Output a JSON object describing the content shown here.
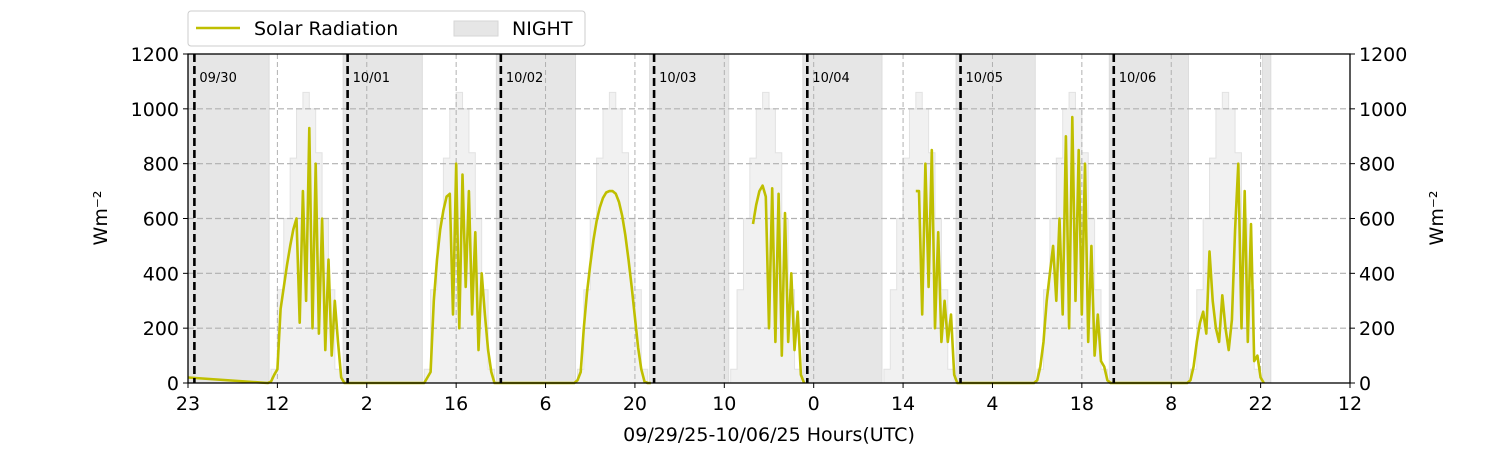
{
  "chart_data": {
    "type": "line",
    "xlabel": "09/29/25-10/06/25  Hours(UTC)",
    "ylabel_left": "Wm⁻²",
    "ylabel_right": "Wm⁻²",
    "x_units": "hours since 09/29/25 00:00 UTC",
    "xlim": [
      23,
      205
    ],
    "ylim": [
      0,
      1200
    ],
    "yticks": [
      0,
      200,
      400,
      600,
      800,
      1000,
      1200
    ],
    "xticks": [
      23,
      37,
      51,
      65,
      79,
      93,
      107,
      121,
      135,
      149,
      163,
      177,
      191,
      205
    ],
    "xtick_labels": [
      "23",
      "12",
      "2",
      "16",
      "6",
      "20",
      "10",
      "0",
      "14",
      "4",
      "18",
      "8",
      "22",
      "12"
    ],
    "grid": true,
    "legend": {
      "placement": "top-left, above plot",
      "entries": [
        "Solar Radiation",
        "NIGHT"
      ]
    },
    "colors": {
      "solar": "#bfbf00",
      "night": "#e6e6e6",
      "clear_sky": "#f1f1f1",
      "grid": "#b0b0b0"
    },
    "day_markers": [
      {
        "hour": 24,
        "label": "09/30"
      },
      {
        "hour": 48,
        "label": "10/01"
      },
      {
        "hour": 72,
        "label": "10/02"
      },
      {
        "hour": 96,
        "label": "10/03"
      },
      {
        "hour": 120,
        "label": "10/04"
      },
      {
        "hour": 144,
        "label": "10/05"
      },
      {
        "hour": 168,
        "label": "10/06"
      }
    ],
    "night_bands": [
      [
        23,
        35.7
      ],
      [
        47.3,
        59.7
      ],
      [
        71.3,
        83.7
      ],
      [
        95.3,
        107.7
      ],
      [
        119.3,
        131.7
      ],
      [
        143.3,
        155.7
      ],
      [
        167.3,
        179.7
      ],
      [
        191.3,
        192.6
      ]
    ],
    "clear_sky_hourly_utc": {
      "hours": [
        12,
        13,
        14,
        15,
        16,
        17,
        18,
        19,
        20,
        21,
        22
      ],
      "values": [
        50,
        340,
        600,
        820,
        1000,
        1060,
        1000,
        840,
        600,
        340,
        50
      ]
    },
    "series": [
      {
        "name": "Solar Radiation",
        "start_value": 20,
        "utc_half_hours": [
          11.5,
          12,
          12.5,
          13,
          13.5,
          14,
          14.5,
          15,
          15.5,
          16,
          16.5,
          17,
          17.5,
          18,
          18.5,
          19,
          19.5,
          20,
          20.5,
          21,
          21.5,
          22,
          22.5,
          23,
          23.5
        ],
        "days": [
          {
            "date": "09/30",
            "values": [
              0,
              5,
              30,
              50,
              270,
              350,
              430,
              500,
              560,
              600,
              220,
              700,
              300,
              930,
              200,
              800,
              180,
              600,
              120,
              450,
              100,
              300,
              150,
              20,
              0
            ]
          },
          {
            "date": "10/01",
            "values": [
              0,
              0,
              20,
              40,
              300,
              450,
              560,
              630,
              680,
              690,
              250,
              800,
              200,
              760,
              350,
              700,
              250,
              550,
              120,
              400,
              250,
              120,
              40,
              0,
              0
            ]
          },
          {
            "date": "10/02",
            "values": [
              0,
              10,
              40,
              200,
              330,
              430,
              520,
              590,
              640,
              675,
              695,
              700,
              700,
              690,
              660,
              610,
              540,
              450,
              350,
              240,
              130,
              50,
              5,
              0,
              0
            ]
          },
          {
            "date": "10/03",
            "values": [
              null,
              null,
              null,
              null,
              null,
              null,
              null,
              null,
              580,
              650,
              700,
              720,
              680,
              200,
              710,
              150,
              690,
              100,
              620,
              150,
              400,
              120,
              260,
              30,
              0
            ]
          },
          {
            "date": "10/04",
            "values": [
              null,
              null,
              null,
              null,
              null,
              null,
              null,
              null,
              null,
              null,
              null,
              700,
              700,
              250,
              800,
              350,
              850,
              200,
              550,
              150,
              300,
              150,
              250,
              30,
              0
            ]
          },
          {
            "date": "10/05",
            "values": [
              0,
              10,
              60,
              150,
              300,
              400,
              500,
              300,
              600,
              250,
              900,
              200,
              970,
              300,
              850,
              250,
              800,
              150,
              500,
              100,
              250,
              80,
              60,
              10,
              0
            ]
          },
          {
            "date": "10/06",
            "values": [
              0,
              10,
              60,
              150,
              220,
              260,
              180,
              480,
              300,
              200,
              150,
              320,
              200,
              120,
              230,
              560,
              800,
              200,
              700,
              150,
              580,
              80,
              100,
              20,
              0
            ]
          }
        ]
      }
    ]
  }
}
